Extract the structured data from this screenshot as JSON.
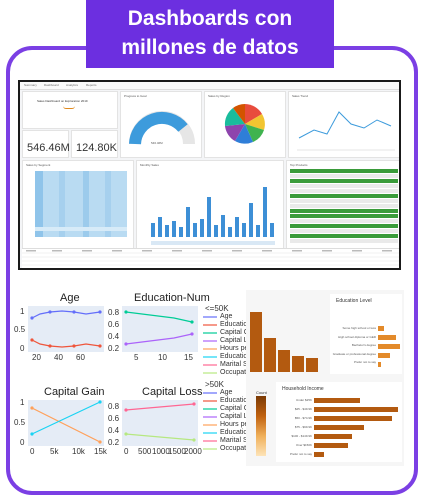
{
  "banner": {
    "line1": "Dashboards con",
    "line2": "millones de datos"
  },
  "dashboard": {
    "tabs": [
      "Summary",
      "Dashboard",
      "Analytics",
      "Reports"
    ],
    "logo_text": "Sales Dashboard on Exploration 2019",
    "kpi1": "546.46M",
    "kpi2": "124.80K",
    "gauge_value": "546.46M",
    "card_titles": [
      "Progress to Goal",
      "Sales by Region",
      "Sales Trend",
      "Sales by Segment",
      "Monthly Sales",
      "Top Products"
    ]
  },
  "plots": {
    "age_title": "Age",
    "edu_title": "Education-Num",
    "gain_title": "Capital Gain",
    "loss_title": "Capital Loss",
    "age_xticks": [
      "20",
      "40",
      "60"
    ],
    "edu_xticks": [
      "5",
      "10",
      "15"
    ],
    "gain_xticks": [
      "0",
      "5k",
      "10k",
      "15k"
    ],
    "loss_xticks": [
      "0",
      "500",
      "1000",
      "1500",
      "2000"
    ],
    "yticks_a": [
      "1",
      "0.5",
      "0"
    ],
    "yticks_b": [
      "0.8",
      "0.6",
      "0.4",
      "0.2"
    ],
    "yticks_c": [
      "1",
      "0.5",
      "0"
    ],
    "yticks_d": [
      "0.8",
      "0.6",
      "0.4",
      "0.2"
    ]
  },
  "legend_le": {
    "title": "<=50K",
    "items": [
      "Age",
      "Education",
      "Capital G",
      "Capital Lo",
      "Hours per",
      "Education",
      "Marital St",
      "Occupatic"
    ]
  },
  "legend_gt": {
    "title": ">50K",
    "items": [
      "Age",
      "Education",
      "Capital G",
      "Capital Lo",
      "Hours per",
      "Education",
      "Marital St",
      "Occupatic"
    ]
  },
  "right_panel": {
    "edu_title": "Education Level",
    "edu_items": [
      "Some high school or less",
      "High school diploma or GED",
      "Bachelor's degree",
      "Graduate or professional degree",
      "Prefer not to say"
    ],
    "income_title": "Household Income",
    "income_items": [
      "Under $25K",
      "$25 - $49.9K",
      "$50 - $74.9K",
      "$75 - $99.9K",
      "$100 - $149.9K",
      "Over $150K",
      "Prefer not to say"
    ],
    "colorbar_label": "Count"
  },
  "colors": {
    "purple": "#6c2fe0",
    "frame": "#7b3fe4",
    "teal": "#2a9fd6",
    "orange": "#c0610f"
  }
}
